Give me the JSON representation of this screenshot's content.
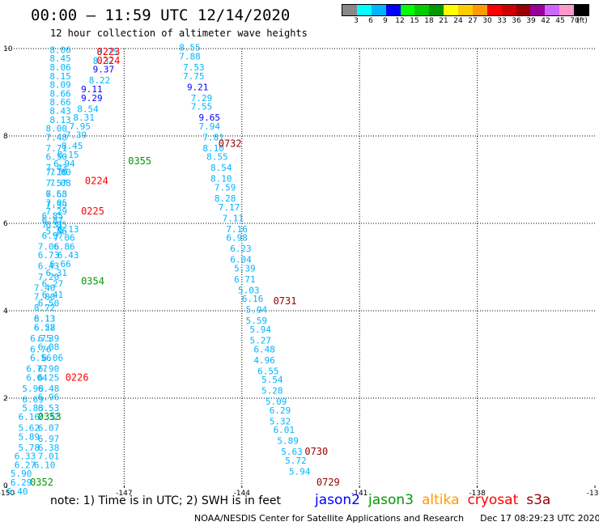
{
  "title": "00:00 – 11:59 UTC 12/14/2020",
  "subtitle": "12 hour collection of altimeter wave heights",
  "legend": {
    "colors": [
      "#888888",
      "#00ffff",
      "#00b4ff",
      "#0000ff",
      "#00ff00",
      "#00cc00",
      "#009900",
      "#ffff00",
      "#ffcc00",
      "#ff9900",
      "#ff0000",
      "#cc0000",
      "#990000",
      "#990099",
      "#cc66ff",
      "#ff99cc",
      "#000000"
    ],
    "labels": [
      "3",
      "6",
      "9",
      "12",
      "15",
      "18",
      "21",
      "24",
      "27",
      "30",
      "33",
      "36",
      "39",
      "42",
      "45",
      "70",
      "(ft)"
    ]
  },
  "chart_data": {
    "type": "scatter",
    "title": "12 hour collection of altimeter wave heights",
    "xlim": [
      -150,
      -135
    ],
    "ylim": [
      0,
      10
    ],
    "xticks": [
      "-150",
      "-147",
      "-144",
      "-141",
      "-138",
      "-135"
    ],
    "yticks": [
      "0",
      "2",
      "4",
      "6",
      "8",
      "10"
    ],
    "grid": true,
    "points": [
      {
        "x": -148.9,
        "y": 9.9,
        "label": "8.06",
        "color": "#00b4ff"
      },
      {
        "x": -148.9,
        "y": 9.7,
        "label": "8.45",
        "color": "#00b4ff"
      },
      {
        "x": -148.9,
        "y": 9.5,
        "label": "8.06",
        "color": "#00b4ff"
      },
      {
        "x": -148.9,
        "y": 9.3,
        "label": "8.15",
        "color": "#00b4ff"
      },
      {
        "x": -148.9,
        "y": 9.1,
        "label": "8.09",
        "color": "#00b4ff"
      },
      {
        "x": -148.9,
        "y": 8.9,
        "label": "8.66",
        "color": "#00b4ff"
      },
      {
        "x": -148.9,
        "y": 8.7,
        "label": "8.66",
        "color": "#00b4ff"
      },
      {
        "x": -148.9,
        "y": 8.5,
        "label": "8.43",
        "color": "#00b4ff"
      },
      {
        "x": -148.9,
        "y": 8.3,
        "label": "8.13",
        "color": "#00b4ff"
      },
      {
        "x": -149.0,
        "y": 8.1,
        "label": "8.00",
        "color": "#00b4ff"
      },
      {
        "x": -149.0,
        "y": 7.9,
        "label": "7.48",
        "color": "#00b4ff"
      },
      {
        "x": -149.0,
        "y": 7.65,
        "label": "7.71",
        "color": "#00b4ff"
      },
      {
        "x": -149.0,
        "y": 7.45,
        "label": "6.50",
        "color": "#00b4ff"
      },
      {
        "x": -149.0,
        "y": 7.2,
        "label": "7.43",
        "color": "#00b4ff"
      },
      {
        "x": -149.0,
        "y": 7.1,
        "label": "7.16",
        "color": "#00b4ff"
      },
      {
        "x": -149.0,
        "y": 6.85,
        "label": "7.57",
        "color": "#00b4ff"
      },
      {
        "x": -149.0,
        "y": 6.6,
        "label": "6.68",
        "color": "#00b4ff"
      },
      {
        "x": -149.0,
        "y": 6.35,
        "label": "7.39",
        "color": "#00b4ff"
      },
      {
        "x": -149.1,
        "y": 6.1,
        "label": "6.85",
        "color": "#00b4ff"
      },
      {
        "x": -149.1,
        "y": 5.9,
        "label": "7.31",
        "color": "#00b4ff"
      },
      {
        "x": -149.1,
        "y": 5.65,
        "label": "6.97",
        "color": "#00b4ff"
      },
      {
        "x": -149.2,
        "y": 5.4,
        "label": "7.06",
        "color": "#00b4ff"
      },
      {
        "x": -149.2,
        "y": 5.2,
        "label": "6.73",
        "color": "#00b4ff"
      },
      {
        "x": -149.2,
        "y": 4.95,
        "label": "6.43",
        "color": "#00b4ff"
      },
      {
        "x": -149.2,
        "y": 4.7,
        "label": "7.20",
        "color": "#00b4ff"
      },
      {
        "x": -149.3,
        "y": 4.45,
        "label": "7.40",
        "color": "#00b4ff"
      },
      {
        "x": -149.3,
        "y": 4.25,
        "label": "7.80",
        "color": "#00b4ff"
      },
      {
        "x": -149.3,
        "y": 4.0,
        "label": "8.72",
        "color": "#00b4ff"
      },
      {
        "x": -149.3,
        "y": 3.75,
        "label": "8.13",
        "color": "#00b4ff"
      },
      {
        "x": -149.3,
        "y": 3.55,
        "label": "6.28",
        "color": "#00b4ff"
      },
      {
        "x": -149.4,
        "y": 3.3,
        "label": "6.75",
        "color": "#00b4ff"
      },
      {
        "x": -149.4,
        "y": 3.05,
        "label": "6.76",
        "color": "#00b4ff"
      },
      {
        "x": -149.4,
        "y": 2.85,
        "label": "6.56",
        "color": "#00b4ff"
      },
      {
        "x": -149.5,
        "y": 2.6,
        "label": "6.77",
        "color": "#00b4ff"
      },
      {
        "x": -149.5,
        "y": 2.4,
        "label": "6.04",
        "color": "#00b4ff"
      },
      {
        "x": -149.6,
        "y": 2.15,
        "label": "5.98",
        "color": "#00b4ff"
      },
      {
        "x": -149.6,
        "y": 1.9,
        "label": "6.69",
        "color": "#00b4ff"
      },
      {
        "x": -149.6,
        "y": 1.7,
        "label": "5.83",
        "color": "#00b4ff"
      },
      {
        "x": -149.7,
        "y": 1.5,
        "label": "6.16",
        "color": "#00b4ff"
      },
      {
        "x": -149.7,
        "y": 1.25,
        "label": "5.62",
        "color": "#00b4ff"
      },
      {
        "x": -149.7,
        "y": 1.05,
        "label": "5.89",
        "color": "#00b4ff"
      },
      {
        "x": -149.7,
        "y": 0.8,
        "label": "5.78",
        "color": "#00b4ff"
      },
      {
        "x": -149.8,
        "y": 0.6,
        "label": "6.33",
        "color": "#00b4ff"
      },
      {
        "x": -149.8,
        "y": 0.4,
        "label": "6.27",
        "color": "#00b4ff"
      },
      {
        "x": -149.9,
        "y": 0.2,
        "label": "5.90",
        "color": "#00b4ff"
      },
      {
        "x": -149.9,
        "y": 0.0,
        "label": "6.29",
        "color": "#00b4ff"
      },
      {
        "x": -150.0,
        "y": -0.2,
        "label": "6.40",
        "color": "#00b4ff"
      },
      {
        "x": -149.1,
        "y": 6.0,
        "label": "6.87",
        "color": "#00b4ff"
      },
      {
        "x": -148.7,
        "y": 5.8,
        "label": "6.13",
        "color": "#00b4ff"
      },
      {
        "x": -148.8,
        "y": 5.6,
        "label": "7.06",
        "color": "#00b4ff"
      },
      {
        "x": -148.8,
        "y": 5.4,
        "label": "6.86",
        "color": "#00b4ff"
      },
      {
        "x": -148.7,
        "y": 5.2,
        "label": "6.43",
        "color": "#00b4ff"
      },
      {
        "x": -148.9,
        "y": 5.0,
        "label": "6.66",
        "color": "#00b4ff"
      },
      {
        "x": -149.0,
        "y": 4.8,
        "label": "6.31",
        "color": "#00b4ff"
      },
      {
        "x": -149.1,
        "y": 4.55,
        "label": "6.27",
        "color": "#00b4ff"
      },
      {
        "x": -149.1,
        "y": 4.3,
        "label": "6.41",
        "color": "#00b4ff"
      },
      {
        "x": -149.2,
        "y": 4.1,
        "label": "6.50",
        "color": "#00b4ff"
      },
      {
        "x": -149.3,
        "y": 3.75,
        "label": "6.13",
        "color": "#00b4ff"
      },
      {
        "x": -149.3,
        "y": 3.55,
        "label": "6.52",
        "color": "#00b4ff"
      },
      {
        "x": -149.2,
        "y": 3.3,
        "label": "6.39",
        "color": "#00b4ff"
      },
      {
        "x": -149.2,
        "y": 3.1,
        "label": "6.08",
        "color": "#00b4ff"
      },
      {
        "x": -149.1,
        "y": 2.85,
        "label": "6.06",
        "color": "#00b4ff"
      },
      {
        "x": -149.2,
        "y": 2.6,
        "label": "6.90",
        "color": "#00b4ff"
      },
      {
        "x": -149.2,
        "y": 2.4,
        "label": "6.25",
        "color": "#00b4ff"
      },
      {
        "x": -149.2,
        "y": 2.15,
        "label": "6.48",
        "color": "#00b4ff"
      },
      {
        "x": -149.2,
        "y": 1.95,
        "label": "6.96",
        "color": "#00b4ff"
      },
      {
        "x": -149.2,
        "y": 1.7,
        "label": "6.53",
        "color": "#00b4ff"
      },
      {
        "x": -149.2,
        "y": 1.5,
        "label": "7.32",
        "color": "#00b4ff"
      },
      {
        "x": -149.2,
        "y": 1.25,
        "label": "6.07",
        "color": "#00b4ff"
      },
      {
        "x": -149.2,
        "y": 1.0,
        "label": "6.97",
        "color": "#00b4ff"
      },
      {
        "x": -149.2,
        "y": 0.8,
        "label": "6.38",
        "color": "#00b4ff"
      },
      {
        "x": -149.2,
        "y": 0.6,
        "label": "7.01",
        "color": "#00b4ff"
      },
      {
        "x": -149.3,
        "y": 0.4,
        "label": "6.10",
        "color": "#00b4ff"
      },
      {
        "x": -147.7,
        "y": 9.85,
        "label": "8.75",
        "color": "#00b4ff"
      },
      {
        "x": -147.8,
        "y": 9.65,
        "label": "8.37",
        "color": "#00b4ff"
      },
      {
        "x": -147.8,
        "y": 9.45,
        "label": "9.37",
        "color": "#0000ff"
      },
      {
        "x": -147.9,
        "y": 9.2,
        "label": "8.22",
        "color": "#00b4ff"
      },
      {
        "x": -148.1,
        "y": 9.0,
        "label": "9.11",
        "color": "#0000ff"
      },
      {
        "x": -148.1,
        "y": 8.8,
        "label": "9.29",
        "color": "#0000ff"
      },
      {
        "x": -148.2,
        "y": 8.55,
        "label": "8.54",
        "color": "#00b4ff"
      },
      {
        "x": -148.3,
        "y": 8.35,
        "label": "8.31",
        "color": "#00b4ff"
      },
      {
        "x": -148.4,
        "y": 8.15,
        "label": "7.95",
        "color": "#00b4ff"
      },
      {
        "x": -148.5,
        "y": 7.95,
        "label": "7.39",
        "color": "#00b4ff"
      },
      {
        "x": -148.6,
        "y": 7.7,
        "label": "8.45",
        "color": "#00b4ff"
      },
      {
        "x": -148.7,
        "y": 7.5,
        "label": "8.15",
        "color": "#00b4ff"
      },
      {
        "x": -148.8,
        "y": 7.3,
        "label": "6.94",
        "color": "#00b4ff"
      },
      {
        "x": -148.9,
        "y": 7.1,
        "label": "7.60",
        "color": "#00b4ff"
      },
      {
        "x": -148.9,
        "y": 6.85,
        "label": "7.08",
        "color": "#00b4ff"
      },
      {
        "x": -149.0,
        "y": 6.6,
        "label": "7.53",
        "color": "#00b4ff"
      },
      {
        "x": -149.0,
        "y": 6.4,
        "label": "7.05",
        "color": "#00b4ff"
      },
      {
        "x": -149.0,
        "y": 6.2,
        "label": "7.29",
        "color": "#00b4ff"
      },
      {
        "x": -149.0,
        "y": 5.9,
        "label": "6.85",
        "color": "#00b4ff"
      },
      {
        "x": -149.0,
        "y": 5.75,
        "label": "5.86",
        "color": "#00b4ff"
      },
      {
        "x": -145.6,
        "y": 9.95,
        "label": "8.55",
        "color": "#00b4ff"
      },
      {
        "x": -145.6,
        "y": 9.75,
        "label": "7.88",
        "color": "#00b4ff"
      },
      {
        "x": -145.5,
        "y": 9.5,
        "label": "7.53",
        "color": "#00b4ff"
      },
      {
        "x": -145.5,
        "y": 9.3,
        "label": "7.75",
        "color": "#00b4ff"
      },
      {
        "x": -145.4,
        "y": 9.05,
        "label": "9.21",
        "color": "#0000ff"
      },
      {
        "x": -145.3,
        "y": 8.8,
        "label": "7.29",
        "color": "#00b4ff"
      },
      {
        "x": -145.3,
        "y": 8.6,
        "label": "7.55",
        "color": "#00b4ff"
      },
      {
        "x": -145.1,
        "y": 8.35,
        "label": "9.65",
        "color": "#0000ff"
      },
      {
        "x": -145.1,
        "y": 8.15,
        "label": "7.94",
        "color": "#00b4ff"
      },
      {
        "x": -145.0,
        "y": 7.9,
        "label": "7.81",
        "color": "#00b4ff"
      },
      {
        "x": -145.0,
        "y": 7.65,
        "label": "8.10",
        "color": "#00b4ff"
      },
      {
        "x": -144.9,
        "y": 7.45,
        "label": "8.55",
        "color": "#00b4ff"
      },
      {
        "x": -144.8,
        "y": 7.2,
        "label": "8.54",
        "color": "#00b4ff"
      },
      {
        "x": -144.8,
        "y": 6.95,
        "label": "8.10",
        "color": "#00b4ff"
      },
      {
        "x": -144.7,
        "y": 6.75,
        "label": "7.59",
        "color": "#00b4ff"
      },
      {
        "x": -144.7,
        "y": 6.5,
        "label": "8.28",
        "color": "#00b4ff"
      },
      {
        "x": -144.6,
        "y": 6.3,
        "label": "7.17",
        "color": "#00b4ff"
      },
      {
        "x": -144.5,
        "y": 6.05,
        "label": "7.11",
        "color": "#00b4ff"
      },
      {
        "x": -144.4,
        "y": 5.8,
        "label": "7.16",
        "color": "#00b4ff"
      },
      {
        "x": -144.4,
        "y": 5.6,
        "label": "6.98",
        "color": "#00b4ff"
      },
      {
        "x": -144.3,
        "y": 5.35,
        "label": "6.23",
        "color": "#00b4ff"
      },
      {
        "x": -144.3,
        "y": 5.1,
        "label": "6.04",
        "color": "#00b4ff"
      },
      {
        "x": -144.2,
        "y": 4.9,
        "label": "5.39",
        "color": "#00b4ff"
      },
      {
        "x": -144.2,
        "y": 4.65,
        "label": "6.71",
        "color": "#00b4ff"
      },
      {
        "x": -144.1,
        "y": 4.4,
        "label": "5.03",
        "color": "#00b4ff"
      },
      {
        "x": -144.0,
        "y": 4.2,
        "label": "6.16",
        "color": "#00b4ff"
      },
      {
        "x": -143.9,
        "y": 3.95,
        "label": "5.94",
        "color": "#00b4ff"
      },
      {
        "x": -143.9,
        "y": 3.7,
        "label": "5.59",
        "color": "#00b4ff"
      },
      {
        "x": -143.8,
        "y": 3.5,
        "label": "5.94",
        "color": "#00b4ff"
      },
      {
        "x": -143.8,
        "y": 3.25,
        "label": "5.27",
        "color": "#00b4ff"
      },
      {
        "x": -143.7,
        "y": 3.05,
        "label": "6.48",
        "color": "#00b4ff"
      },
      {
        "x": -143.7,
        "y": 2.8,
        "label": "4.96",
        "color": "#00b4ff"
      },
      {
        "x": -143.6,
        "y": 2.55,
        "label": "6.55",
        "color": "#00b4ff"
      },
      {
        "x": -143.5,
        "y": 2.35,
        "label": "5.54",
        "color": "#00b4ff"
      },
      {
        "x": -143.5,
        "y": 2.1,
        "label": "5.28",
        "color": "#00b4ff"
      },
      {
        "x": -143.4,
        "y": 1.85,
        "label": "5.09",
        "color": "#00b4ff"
      },
      {
        "x": -143.3,
        "y": 1.65,
        "label": "6.29",
        "color": "#00b4ff"
      },
      {
        "x": -143.3,
        "y": 1.4,
        "label": "5.32",
        "color": "#00b4ff"
      },
      {
        "x": -143.2,
        "y": 1.2,
        "label": "6.01",
        "color": "#00b4ff"
      },
      {
        "x": -143.1,
        "y": 0.95,
        "label": "5.89",
        "color": "#00b4ff"
      },
      {
        "x": -143.0,
        "y": 0.7,
        "label": "5.63",
        "color": "#00b4ff"
      },
      {
        "x": -142.9,
        "y": 0.5,
        "label": "5.72",
        "color": "#00b4ff"
      },
      {
        "x": -142.8,
        "y": 0.25,
        "label": "5.94",
        "color": "#00b4ff"
      }
    ],
    "time_labels": [
      {
        "x": -147.7,
        "y": 9.85,
        "label": "0223",
        "color": "#ff0000"
      },
      {
        "x": -147.7,
        "y": 9.65,
        "label": "0224",
        "color": "#ff0000"
      },
      {
        "x": -146.9,
        "y": 7.35,
        "label": "0355",
        "color": "#009900"
      },
      {
        "x": -148.0,
        "y": 6.9,
        "label": "0224",
        "color": "#ff0000"
      },
      {
        "x": -148.1,
        "y": 6.2,
        "label": "0225",
        "color": "#ff0000"
      },
      {
        "x": -148.1,
        "y": 4.6,
        "label": "0354",
        "color": "#009900"
      },
      {
        "x": -148.5,
        "y": 2.4,
        "label": "0226",
        "color": "#ff0000"
      },
      {
        "x": -149.2,
        "y": 1.5,
        "label": "0353",
        "color": "#009900"
      },
      {
        "x": -149.4,
        "y": 0.0,
        "label": "0352",
        "color": "#009900"
      },
      {
        "x": -144.6,
        "y": 7.75,
        "label": "0732",
        "color": "#990000"
      },
      {
        "x": -143.2,
        "y": 4.15,
        "label": "0731",
        "color": "#990000"
      },
      {
        "x": -142.4,
        "y": 0.7,
        "label": "0730",
        "color": "#990000"
      },
      {
        "x": -142.1,
        "y": 0.0,
        "label": "0729",
        "color": "#990000"
      }
    ]
  },
  "note": "note: 1) Time is in UTC; 2) SWH is in feet",
  "satellites": [
    {
      "name": "jason2",
      "color": "#0000ff"
    },
    {
      "name": "jason3",
      "color": "#009900"
    },
    {
      "name": "altika",
      "color": "#ff9900"
    },
    {
      "name": "cryosat",
      "color": "#ff0000"
    },
    {
      "name": "s3a",
      "color": "#990000"
    }
  ],
  "footer": {
    "org": "NOAA/NESDIS Center for Satellite Applications and Research",
    "timestamp": "Dec 17 08:29:23 UTC 2020"
  }
}
